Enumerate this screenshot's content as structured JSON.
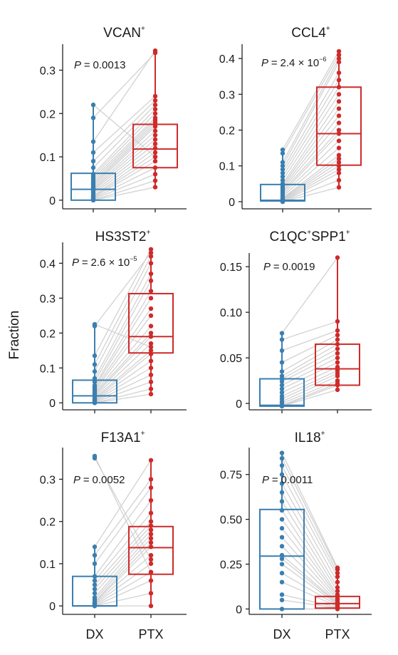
{
  "figure": {
    "ylabel": "Fraction",
    "groups": [
      "DX",
      "PTX"
    ],
    "colors": {
      "DX": "#3a7fb0",
      "PTX": "#cf2a2a",
      "pair_line": "#d2d2d2",
      "axis": "#222222"
    }
  },
  "chart_data": [
    {
      "type": "box",
      "title": "VCAN",
      "title_sup": "+",
      "pvalue": {
        "prefix": "P = ",
        "mantissa": "0.0013",
        "exponent": ""
      },
      "ylim": [
        -0.02,
        0.36
      ],
      "yticks": [
        0,
        0.1,
        0.2,
        0.3
      ],
      "ytick_labels": [
        "0",
        "0.1",
        "0.2",
        "0.3"
      ],
      "box": {
        "DX": {
          "q1": 0.0,
          "median": 0.025,
          "q3": 0.062,
          "whisker_low": 0.0,
          "whisker_high": 0.22
        },
        "PTX": {
          "q1": 0.075,
          "median": 0.118,
          "q3": 0.175,
          "whisker_low": 0.03,
          "whisker_high": 0.345
        }
      },
      "pairs": [
        [
          0,
          0.03
        ],
        [
          0,
          0.045
        ],
        [
          0.002,
          0.06
        ],
        [
          0.004,
          0.075
        ],
        [
          0.006,
          0.09
        ],
        [
          0.008,
          0.1
        ],
        [
          0.01,
          0.11
        ],
        [
          0.014,
          0.12
        ],
        [
          0.018,
          0.13
        ],
        [
          0.022,
          0.14
        ],
        [
          0.025,
          0.15
        ],
        [
          0.028,
          0.16
        ],
        [
          0.032,
          0.17
        ],
        [
          0.036,
          0.175
        ],
        [
          0.04,
          0.18
        ],
        [
          0.045,
          0.185
        ],
        [
          0.05,
          0.19
        ],
        [
          0.055,
          0.2
        ],
        [
          0.06,
          0.21
        ],
        [
          0.075,
          0.22
        ],
        [
          0.09,
          0.23
        ],
        [
          0.11,
          0.24
        ],
        [
          0.135,
          0.345
        ],
        [
          0.19,
          0.34
        ],
        [
          0.22,
          0.1
        ]
      ]
    },
    {
      "type": "box",
      "title": "CCL4",
      "title_sup": "+",
      "pvalue": {
        "prefix": "P = ",
        "mantissa": "2.4 × 10",
        "exponent": "−6"
      },
      "ylim": [
        -0.02,
        0.44
      ],
      "yticks": [
        0,
        0.1,
        0.2,
        0.3,
        0.4
      ],
      "ytick_labels": [
        "0",
        "0.1",
        "0.2",
        "0.3",
        "0.4"
      ],
      "box": {
        "DX": {
          "q1": 0.002,
          "median": 0.004,
          "q3": 0.048,
          "whisker_low": 0.0,
          "whisker_high": 0.145
        },
        "PTX": {
          "q1": 0.102,
          "median": 0.19,
          "q3": 0.32,
          "whisker_low": 0.04,
          "whisker_high": 0.42
        }
      },
      "pairs": [
        [
          0,
          0.04
        ],
        [
          0,
          0.06
        ],
        [
          0,
          0.08
        ],
        [
          0.002,
          0.09
        ],
        [
          0.004,
          0.1
        ],
        [
          0.006,
          0.11
        ],
        [
          0.008,
          0.12
        ],
        [
          0.01,
          0.13
        ],
        [
          0.015,
          0.15
        ],
        [
          0.02,
          0.17
        ],
        [
          0.025,
          0.19
        ],
        [
          0.03,
          0.2
        ],
        [
          0.035,
          0.22
        ],
        [
          0.04,
          0.24
        ],
        [
          0.045,
          0.26
        ],
        [
          0.05,
          0.28
        ],
        [
          0.06,
          0.3
        ],
        [
          0.07,
          0.32
        ],
        [
          0.08,
          0.34
        ],
        [
          0.09,
          0.36
        ],
        [
          0.1,
          0.39
        ],
        [
          0.11,
          0.4
        ],
        [
          0.135,
          0.41
        ],
        [
          0.145,
          0.42
        ]
      ]
    },
    {
      "type": "box",
      "title": "HS3ST2",
      "title_sup": "+",
      "pvalue": {
        "prefix": "P = ",
        "mantissa": "2.6 × 10",
        "exponent": "−5"
      },
      "ylim": [
        -0.02,
        0.46
      ],
      "yticks": [
        0,
        0.1,
        0.2,
        0.3,
        0.4
      ],
      "ytick_labels": [
        "0",
        "0.1",
        "0.2",
        "0.3",
        "0.4"
      ],
      "box": {
        "DX": {
          "q1": 0.0,
          "median": 0.02,
          "q3": 0.065,
          "whisker_low": 0.0,
          "whisker_high": 0.225
        },
        "PTX": {
          "q1": 0.143,
          "median": 0.19,
          "q3": 0.313,
          "whisker_low": 0.025,
          "whisker_high": 0.44
        }
      },
      "pairs": [
        [
          0,
          0.025
        ],
        [
          0,
          0.04
        ],
        [
          0.002,
          0.06
        ],
        [
          0.004,
          0.08
        ],
        [
          0.006,
          0.1
        ],
        [
          0.008,
          0.12
        ],
        [
          0.01,
          0.14
        ],
        [
          0.014,
          0.15
        ],
        [
          0.018,
          0.17
        ],
        [
          0.022,
          0.19
        ],
        [
          0.026,
          0.2
        ],
        [
          0.03,
          0.22
        ],
        [
          0.035,
          0.25
        ],
        [
          0.04,
          0.27
        ],
        [
          0.045,
          0.3
        ],
        [
          0.05,
          0.32
        ],
        [
          0.06,
          0.35
        ],
        [
          0.07,
          0.37
        ],
        [
          0.09,
          0.4
        ],
        [
          0.11,
          0.42
        ],
        [
          0.135,
          0.44
        ],
        [
          0.22,
          0.43
        ],
        [
          0.225,
          0.16
        ]
      ]
    },
    {
      "type": "box",
      "title": "C1QC",
      "title_sup": "+",
      "title_part2": "SPP1",
      "title_sup2": "+",
      "pvalue": {
        "prefix": "P = ",
        "mantissa": "0.0019",
        "exponent": ""
      },
      "ylim": [
        -0.007,
        0.165
      ],
      "yticks": [
        0,
        0.05,
        0.1,
        0.15
      ],
      "ytick_labels": [
        "0",
        "0.05",
        "0.10",
        "0.15"
      ],
      "box": {
        "DX": {
          "q1": -0.003,
          "median": -0.002,
          "q3": 0.027,
          "whisker_low": -0.003,
          "whisker_high": 0.077
        },
        "PTX": {
          "q1": 0.02,
          "median": 0.038,
          "q3": 0.065,
          "whisker_low": 0.015,
          "whisker_high": 0.16
        }
      },
      "pairs": [
        [
          -0.003,
          0.015
        ],
        [
          -0.003,
          0.02
        ],
        [
          -0.002,
          0.022
        ],
        [
          0,
          0.025
        ],
        [
          0.002,
          0.03
        ],
        [
          0.005,
          0.033
        ],
        [
          0.008,
          0.036
        ],
        [
          0.012,
          0.04
        ],
        [
          0.016,
          0.045
        ],
        [
          0.02,
          0.05
        ],
        [
          0.024,
          0.055
        ],
        [
          0.027,
          0.06
        ],
        [
          0.03,
          0.065
        ],
        [
          0.035,
          0.07
        ],
        [
          0.045,
          0.075
        ],
        [
          0.058,
          0.08
        ],
        [
          0.07,
          0.09
        ],
        [
          0.077,
          0.16
        ]
      ]
    },
    {
      "type": "box",
      "title": "F13A1",
      "title_sup": "+",
      "pvalue": {
        "prefix": "P = ",
        "mantissa": "0.0052",
        "exponent": ""
      },
      "ylim": [
        -0.02,
        0.375
      ],
      "yticks": [
        0,
        0.1,
        0.2,
        0.3
      ],
      "ytick_labels": [
        "0",
        "0.1",
        "0.2",
        "0.3"
      ],
      "box": {
        "DX": {
          "q1": 0.0,
          "median": 0.0,
          "q3": 0.07,
          "whisker_low": 0.0,
          "whisker_high": 0.145
        },
        "PTX": {
          "q1": 0.075,
          "median": 0.138,
          "q3": 0.188,
          "whisker_low": 0.0,
          "whisker_high": 0.345
        }
      },
      "pairs": [
        [
          0,
          0.0
        ],
        [
          0,
          0.03
        ],
        [
          0,
          0.06
        ],
        [
          0.002,
          0.08
        ],
        [
          0.004,
          0.1
        ],
        [
          0.006,
          0.12
        ],
        [
          0.008,
          0.14
        ],
        [
          0.01,
          0.15
        ],
        [
          0.015,
          0.16
        ],
        [
          0.02,
          0.17
        ],
        [
          0.03,
          0.18
        ],
        [
          0.04,
          0.19
        ],
        [
          0.05,
          0.2
        ],
        [
          0.06,
          0.22
        ],
        [
          0.07,
          0.25
        ],
        [
          0.1,
          0.28
        ],
        [
          0.12,
          0.3
        ],
        [
          0.14,
          0.345
        ],
        [
          0.35,
          0.11
        ],
        [
          0.355,
          0.08
        ]
      ]
    },
    {
      "type": "box",
      "title": "IL18",
      "title_sup": "+",
      "pvalue": {
        "prefix": "P = ",
        "mantissa": "0.0011",
        "exponent": ""
      },
      "ylim": [
        -0.03,
        0.9
      ],
      "yticks": [
        0,
        0.25,
        0.5,
        0.75
      ],
      "ytick_labels": [
        "0",
        "0.25",
        "0.50",
        "0.75"
      ],
      "box": {
        "DX": {
          "q1": 0.0,
          "median": 0.295,
          "q3": 0.555,
          "whisker_low": 0.0,
          "whisker_high": 0.87
        },
        "PTX": {
          "q1": 0.005,
          "median": 0.03,
          "q3": 0.07,
          "whisker_low": 0.0,
          "whisker_high": 0.23
        }
      },
      "pairs": [
        [
          0,
          0.0
        ],
        [
          0.05,
          0.005
        ],
        [
          0.08,
          0.01
        ],
        [
          0.15,
          0.015
        ],
        [
          0.2,
          0.02
        ],
        [
          0.25,
          0.025
        ],
        [
          0.28,
          0.03
        ],
        [
          0.3,
          0.035
        ],
        [
          0.35,
          0.04
        ],
        [
          0.4,
          0.05
        ],
        [
          0.45,
          0.06
        ],
        [
          0.5,
          0.07
        ],
        [
          0.55,
          0.08
        ],
        [
          0.6,
          0.1
        ],
        [
          0.65,
          0.12
        ],
        [
          0.7,
          0.15
        ],
        [
          0.75,
          0.18
        ],
        [
          0.8,
          0.2
        ],
        [
          0.84,
          0.22
        ],
        [
          0.87,
          0.23
        ]
      ]
    }
  ]
}
